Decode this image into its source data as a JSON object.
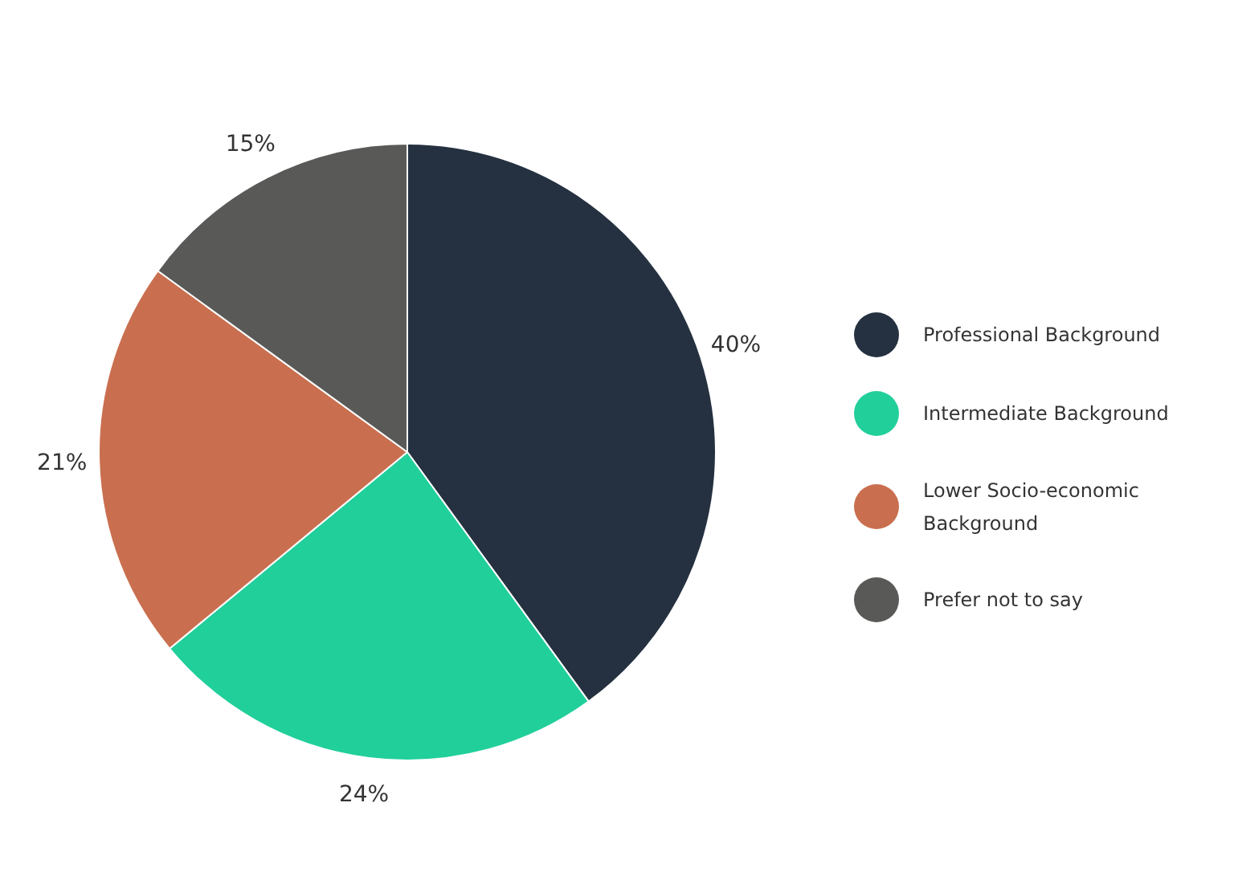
{
  "chart_data": {
    "type": "pie",
    "categories": [
      "Professional Background",
      "Intermediate Background",
      "Lower Socio-economic Background",
      "Prefer not to say"
    ],
    "values": [
      40,
      24,
      21,
      15
    ],
    "colors": [
      "#253140",
      "#21cf9b",
      "#c96f4f",
      "#595957"
    ],
    "value_labels": [
      "40%",
      "24%",
      "21%",
      "15%"
    ],
    "legend": "right"
  }
}
